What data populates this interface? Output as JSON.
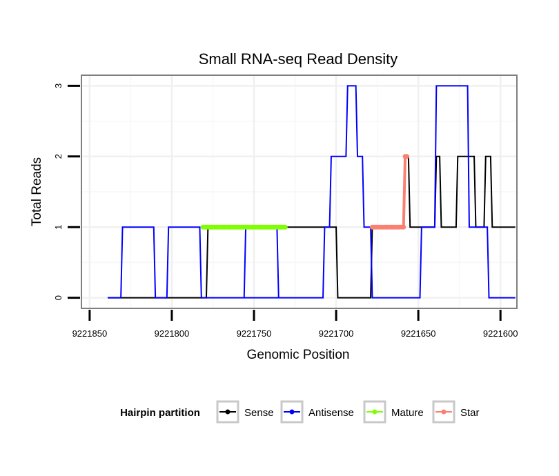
{
  "chart_data": {
    "type": "line",
    "title": "Small RNA-seq Read Density",
    "xlabel": "Genomic Position",
    "ylabel": "Total Reads",
    "xlim": [
      9221855,
      9221590
    ],
    "ylim": [
      -0.15,
      3.15
    ],
    "x_reversed": true,
    "grid": true,
    "x_ticks": [
      9221850,
      9221800,
      9221750,
      9221700,
      9221650,
      9221600
    ],
    "x_tick_labels": [
      "9221850",
      "9221800",
      "9221750",
      "9221700",
      "9221650",
      "9221600"
    ],
    "y_ticks": [
      0,
      1,
      2,
      3
    ],
    "y_tick_labels": [
      "0",
      "1",
      "2",
      "3"
    ],
    "legend": {
      "title": "Hairpin partition",
      "position": "bottom",
      "items": [
        {
          "name": "Sense",
          "color": "#000000"
        },
        {
          "name": "Antisense",
          "color": "#0000ff"
        },
        {
          "name": "Mature",
          "color": "#7fff00"
        },
        {
          "name": "Star",
          "color": "#fa8072"
        }
      ]
    },
    "series": [
      {
        "name": "Sense",
        "color": "#000000",
        "style": "line",
        "x": [
          9221839,
          9221779,
          9221778,
          9221700,
          9221699,
          9221679,
          9221678,
          9221659,
          9221658,
          9221656,
          9221655,
          9221640,
          9221639,
          9221637,
          9221636,
          9221627,
          9221626,
          9221616,
          9221615,
          9221610,
          9221609,
          9221606,
          9221605,
          9221591
        ],
        "y": [
          0,
          0,
          1,
          1,
          0,
          0,
          1,
          1,
          2,
          2,
          1,
          1,
          2,
          2,
          1,
          1,
          2,
          2,
          1,
          1,
          2,
          2,
          1,
          1
        ]
      },
      {
        "name": "Antisense",
        "color": "#0000ff",
        "style": "line",
        "x": [
          9221839,
          9221831,
          9221830,
          9221811,
          9221810,
          9221803,
          9221802,
          9221783,
          9221782,
          9221756,
          9221755,
          9221736,
          9221735,
          9221774,
          9221773,
          9221708,
          9221707,
          9221704,
          9221703,
          9221694,
          9221693,
          9221688,
          9221687,
          9221684,
          9221683,
          9221679,
          9221678,
          9221649,
          9221648,
          9221640,
          9221639,
          9221620,
          9221619,
          9221616,
          9221615,
          9221608,
          9221607,
          9221591
        ],
        "y": [
          0,
          0,
          1,
          1,
          0,
          0,
          1,
          1,
          0,
          0,
          1,
          1,
          0,
          0,
          0,
          0,
          1,
          1,
          2,
          2,
          3,
          3,
          2,
          2,
          1,
          1,
          0,
          0,
          1,
          1,
          3,
          3,
          1,
          1,
          1,
          1,
          0,
          0
        ]
      },
      {
        "name": "Mature",
        "color": "#7fff00",
        "style": "points",
        "x": [
          9221781,
          9221780,
          9221779,
          9221778,
          9221777,
          9221776,
          9221775,
          9221774,
          9221773,
          9221772,
          9221771,
          9221770,
          9221769,
          9221768,
          9221767,
          9221766,
          9221765,
          9221764,
          9221763,
          9221762,
          9221761,
          9221760,
          9221759,
          9221758,
          9221757,
          9221756,
          9221755,
          9221754,
          9221753,
          9221752,
          9221751,
          9221750,
          9221749,
          9221748,
          9221747,
          9221746,
          9221745,
          9221744,
          9221743,
          9221742,
          9221741,
          9221740,
          9221739,
          9221738,
          9221737,
          9221736,
          9221735,
          9221734,
          9221733,
          9221732,
          9221731
        ],
        "y": [
          1,
          1,
          1,
          1,
          1,
          1,
          1,
          1,
          1,
          1,
          1,
          1,
          1,
          1,
          1,
          1,
          1,
          1,
          1,
          1,
          1,
          1,
          1,
          1,
          1,
          1,
          1,
          1,
          1,
          1,
          1,
          1,
          1,
          1,
          1,
          1,
          1,
          1,
          1,
          1,
          1,
          1,
          1,
          1,
          1,
          1,
          1,
          1,
          1,
          1,
          1
        ]
      },
      {
        "name": "Star",
        "color": "#fa8072",
        "style": "points",
        "x": [
          9221678,
          9221677,
          9221676,
          9221675,
          9221674,
          9221673,
          9221672,
          9221671,
          9221670,
          9221669,
          9221668,
          9221667,
          9221666,
          9221665,
          9221664,
          9221663,
          9221662,
          9221661,
          9221660,
          9221659,
          9221658,
          9221657
        ],
        "y": [
          1,
          1,
          1,
          1,
          1,
          1,
          1,
          1,
          1,
          1,
          1,
          1,
          1,
          1,
          1,
          1,
          1,
          1,
          1,
          1,
          2,
          2
        ]
      }
    ]
  }
}
